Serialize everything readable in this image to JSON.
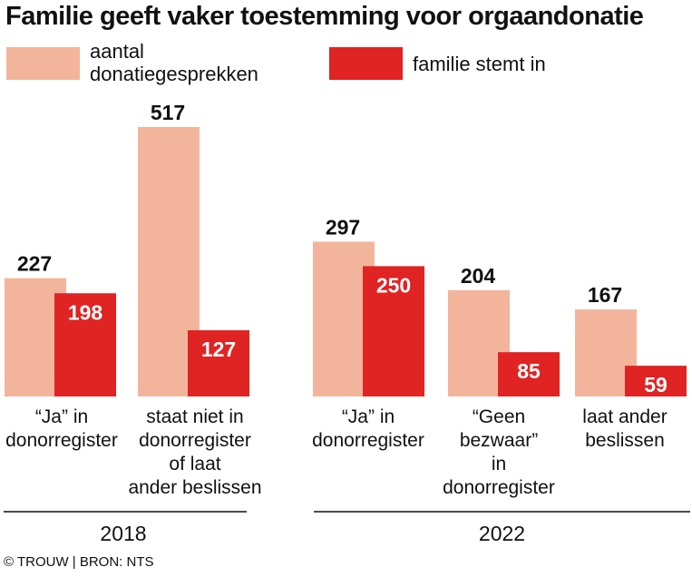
{
  "title": "Familie geeft vaker toestemming voor orgaandonatie",
  "legend": [
    {
      "label_lines": [
        "aantal",
        "donatiegesprekken"
      ],
      "color": "#f2b59c"
    },
    {
      "label_lines": [
        "familie stemt in"
      ],
      "color": "#e02323"
    }
  ],
  "years": [
    "2018",
    "2022"
  ],
  "source": "© TROUW | BRON: NTS",
  "chart_data": {
    "type": "bar",
    "title": "Familie geeft vaker toestemming voor orgaandonatie",
    "series": [
      {
        "name": "aantal donatiegesprekken",
        "color": "#f2b59c",
        "values": [
          227,
          517,
          297,
          204,
          167
        ]
      },
      {
        "name": "familie stemt in",
        "color": "#e02323",
        "values": [
          198,
          127,
          250,
          85,
          59
        ]
      }
    ],
    "categories": [
      {
        "year": "2018",
        "label_lines": [
          "“Ja” in",
          "donorregister"
        ]
      },
      {
        "year": "2018",
        "label_lines": [
          "staat niet in",
          "donorregister",
          "of laat",
          "ander beslissen"
        ]
      },
      {
        "year": "2022",
        "label_lines": [
          "“Ja” in",
          "donorregister"
        ]
      },
      {
        "year": "2022",
        "label_lines": [
          "“Geen",
          "bezwaar”",
          "in",
          "donorregister"
        ]
      },
      {
        "year": "2022",
        "label_lines": [
          "laat ander",
          "beslissen"
        ]
      }
    ],
    "ylim": [
      0,
      517
    ],
    "grid": false,
    "legend_position": "top"
  }
}
